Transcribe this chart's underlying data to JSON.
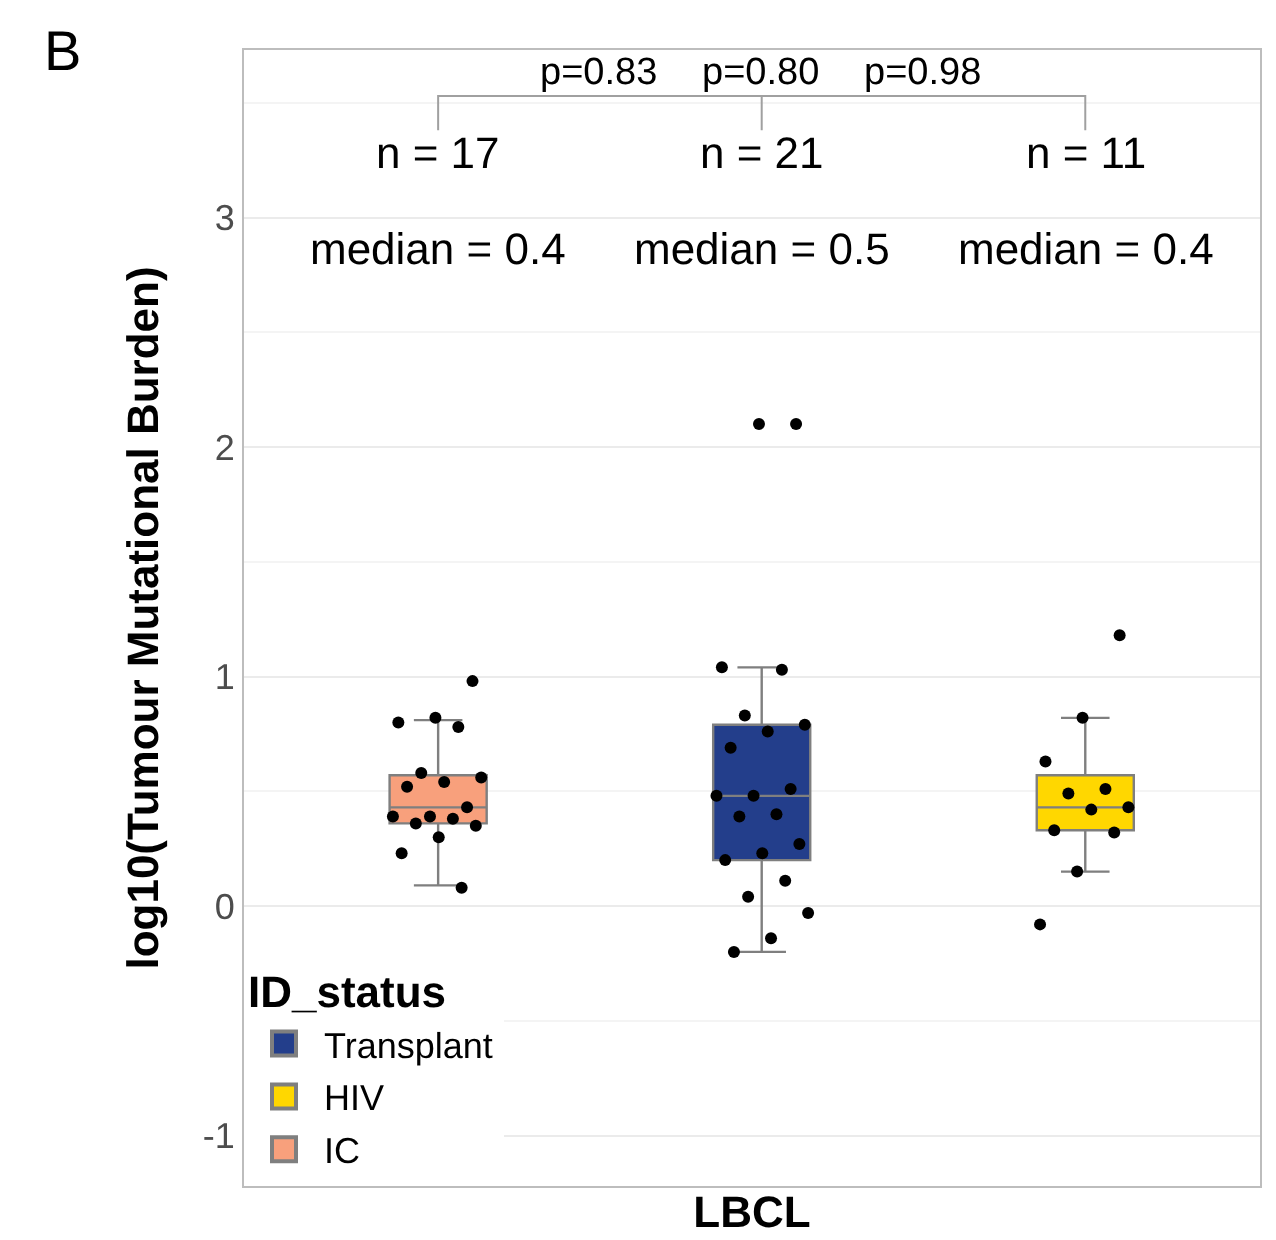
{
  "chart_data": {
    "type": "box",
    "categories": [
      null,
      null,
      null
    ],
    "xlabel": "LBCL",
    "ylabel": "log10(Tumour Mutational Burden)",
    "legend_title": "ID_status",
    "ylim": [
      -1.22,
      3.73
    ],
    "yticks": [
      -1,
      0,
      1,
      2,
      3
    ],
    "grid": true,
    "legend": "bottom left",
    "series": [
      {
        "name": "Transplant",
        "color": "#233e8b",
        "boxes": [
          null,
          {
            "low": -0.2,
            "q1": 0.2,
            "median": 0.48,
            "q3": 0.79,
            "high": 1.04
          },
          null
        ]
      },
      {
        "name": "HIV",
        "color": "#ffd700",
        "boxes": [
          null,
          null,
          {
            "low": 0.15,
            "q1": 0.33,
            "median": 0.43,
            "q3": 0.57,
            "high": 0.82
          }
        ]
      },
      {
        "name": "IC",
        "color": "#f8a07c",
        "boxes": [
          {
            "low": 0.09,
            "q1": 0.36,
            "median": 0.43,
            "q3": 0.57,
            "high": 0.81
          },
          null,
          null
        ]
      },
      {
        "type": "scatter",
        "color": "#000000",
        "values": [
          0.98,
          2.1,
          1.18
        ]
      },
      {
        "type": "scatter",
        "color": "#000000",
        "values": [
          0.82,
          2.1,
          0.82
        ]
      },
      {
        "type": "scatter",
        "color": "#000000",
        "values": [
          0.8,
          1.04,
          0.63
        ]
      },
      {
        "type": "scatter",
        "color": "#000000",
        "values": [
          0.78,
          1.03,
          0.51
        ]
      },
      {
        "type": "scatter",
        "color": "#000000",
        "values": [
          0.58,
          0.83,
          0.49
        ]
      },
      {
        "type": "scatter",
        "color": "#000000",
        "values": [
          0.56,
          0.79,
          0.43
        ]
      },
      {
        "type": "scatter",
        "color": "#000000",
        "values": [
          0.54,
          0.76,
          0.42
        ]
      },
      {
        "type": "scatter",
        "color": "#000000",
        "values": [
          0.52,
          0.69,
          0.33
        ]
      },
      {
        "type": "scatter",
        "color": "#000000",
        "values": [
          0.43,
          0.51,
          0.32
        ]
      },
      {
        "type": "scatter",
        "color": "#000000",
        "values": [
          0.39,
          0.48,
          0.15
        ]
      },
      {
        "type": "scatter",
        "color": "#000000",
        "values": [
          0.39,
          0.48,
          -0.08
        ]
      },
      {
        "type": "scatter",
        "color": "#000000",
        "values": [
          0.38,
          0.4,
          null
        ]
      },
      {
        "type": "scatter",
        "color": "#000000",
        "values": [
          0.36,
          0.39,
          null
        ]
      },
      {
        "type": "scatter",
        "color": "#000000",
        "values": [
          0.35,
          0.27,
          null
        ]
      },
      {
        "type": "scatter",
        "color": "#000000",
        "values": [
          0.3,
          0.23,
          null
        ]
      },
      {
        "type": "scatter",
        "color": "#000000",
        "values": [
          0.23,
          0.2,
          null
        ]
      },
      {
        "type": "scatter",
        "color": "#000000",
        "values": [
          0.08,
          0.11,
          null
        ]
      },
      {
        "type": "scatter",
        "color": "#000000",
        "values": [
          null,
          0.04,
          null
        ]
      },
      {
        "type": "scatter",
        "color": "#000000",
        "values": [
          null,
          -0.03,
          null
        ]
      },
      {
        "type": "scatter",
        "color": "#000000",
        "values": [
          null,
          -0.14,
          null
        ]
      },
      {
        "type": "scatter",
        "color": "#000000",
        "values": [
          null,
          -0.2,
          null
        ]
      }
    ],
    "annotations": [
      "B",
      "p=0.83",
      "p=0.80",
      "p=0.98",
      "n = 17",
      "n = 21",
      "n = 11",
      "median = 0.4",
      "median = 0.5",
      "median = 0.4"
    ]
  }
}
